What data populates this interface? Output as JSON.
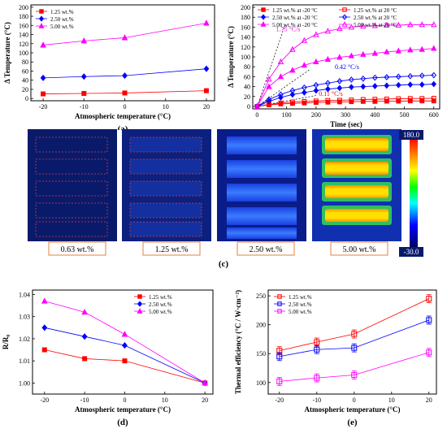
{
  "chart_data": [
    {
      "panel_label": "(a)",
      "type": "line",
      "xlabel": "Atmospheric temperature (°C)",
      "ylabel": "Δ Temperature (°C)",
      "x": [
        -20,
        -10,
        0,
        20
      ],
      "xlim": [
        -23,
        22
      ],
      "ylim": [
        -5,
        205
      ],
      "xticks": [
        -20,
        -10,
        0,
        10,
        20
      ],
      "yticks": [
        0,
        20,
        40,
        60,
        80,
        100,
        120,
        140,
        160,
        180,
        200
      ],
      "legend_position": "top-left",
      "series": [
        {
          "name": "1.25 wt.%",
          "color": "#ff0000",
          "marker": "square",
          "values": [
            10,
            11,
            12,
            17
          ]
        },
        {
          "name": "2.50 wt.%",
          "color": "#0000ff",
          "marker": "diamond",
          "values": [
            45,
            48,
            50,
            65
          ]
        },
        {
          "name": "5.00 wt.%",
          "color": "#ff00ff",
          "marker": "triangle",
          "values": [
            117,
            126,
            133,
            165
          ]
        }
      ]
    },
    {
      "panel_label": "(b)",
      "type": "line",
      "xlabel": "Time (sec)",
      "ylabel": "Δ Temperature (°C)",
      "xlim": [
        -15,
        620
      ],
      "ylim": [
        -5,
        205
      ],
      "xticks": [
        0,
        100,
        200,
        300,
        400,
        500,
        600
      ],
      "yticks": [
        0,
        20,
        40,
        60,
        80,
        100,
        120,
        140,
        160,
        180,
        200
      ],
      "legend_position": "top",
      "annotations": [
        {
          "text": "1.75 °C/s",
          "x": 105,
          "y": 152,
          "color": "#ff00ff"
        },
        {
          "text": "0.42 °C/s",
          "x": 305,
          "y": 75,
          "color": "#0000ff"
        },
        {
          "text": "0.11 °C/s",
          "x": 250,
          "y": 21,
          "color": "#ff0000"
        }
      ],
      "slope_lines": [
        {
          "x0": 0,
          "y0": 0,
          "x1": 95,
          "y1": 165
        },
        {
          "x0": 0,
          "y0": 0,
          "x1": 180,
          "y1": 75
        },
        {
          "x0": 0,
          "y0": 0,
          "x1": 200,
          "y1": 22
        }
      ],
      "series": [
        {
          "name": "1.25 wt.% at -20 °C",
          "color": "#ff0000",
          "marker": "square",
          "filled": true,
          "x": [
            0,
            40,
            80,
            120,
            160,
            200,
            240,
            280,
            320,
            360,
            400,
            440,
            480,
            520,
            560,
            600
          ],
          "values": [
            0,
            3,
            5,
            6,
            7,
            8,
            8.5,
            9,
            9.5,
            10,
            10,
            10.5,
            10.5,
            11,
            11,
            11
          ]
        },
        {
          "name": "2.50 wt.% at -20 °C",
          "color": "#0000ff",
          "marker": "diamond",
          "filled": true,
          "x": [
            0,
            40,
            80,
            120,
            160,
            200,
            240,
            280,
            320,
            360,
            400,
            440,
            480,
            520,
            560,
            600
          ],
          "values": [
            0,
            10,
            18,
            24,
            28,
            32,
            35,
            37,
            39,
            40,
            41,
            42,
            43,
            44,
            44,
            45
          ]
        },
        {
          "name": "5.00 wt.% at -20 °C",
          "color": "#ff00ff",
          "marker": "triangle",
          "filled": true,
          "x": [
            0,
            40,
            80,
            120,
            160,
            200,
            240,
            280,
            320,
            360,
            400,
            440,
            480,
            520,
            560,
            600
          ],
          "values": [
            0,
            40,
            60,
            73,
            83,
            90,
            95,
            99,
            102,
            105,
            107,
            110,
            112,
            114,
            115,
            117
          ]
        },
        {
          "name": "1.25 wt.% at 20 °C",
          "color": "#ff0000",
          "marker": "square",
          "filled": false,
          "x": [
            0,
            40,
            80,
            120,
            160,
            200,
            240,
            280,
            320,
            360,
            400,
            440,
            480,
            520,
            560,
            600
          ],
          "values": [
            0,
            4,
            7,
            9,
            10,
            11,
            12,
            12.5,
            13,
            14,
            14.5,
            15,
            15.5,
            16,
            16,
            16.5
          ]
        },
        {
          "name": "2.50 wt.% at 20 °C",
          "color": "#0000ff",
          "marker": "diamond",
          "filled": false,
          "x": [
            0,
            40,
            80,
            120,
            160,
            200,
            240,
            280,
            320,
            360,
            400,
            440,
            480,
            520,
            560,
            600
          ],
          "values": [
            0,
            14,
            24,
            32,
            38,
            43,
            47,
            51,
            54,
            56,
            58,
            59,
            60,
            61,
            62,
            63
          ]
        },
        {
          "name": "5.00 wt.% at 20 °C",
          "color": "#ff00ff",
          "marker": "triangle",
          "filled": false,
          "x": [
            0,
            40,
            80,
            120,
            160,
            200,
            240,
            280,
            320,
            360,
            400,
            440,
            480,
            520,
            560,
            600
          ],
          "values": [
            0,
            55,
            90,
            115,
            133,
            145,
            152,
            157,
            160,
            162,
            163,
            164,
            164,
            165,
            165,
            165
          ]
        }
      ]
    },
    {
      "panel_label": "(d)",
      "type": "line",
      "xlabel": "Atmospheric temperature (°C)",
      "ylabel": "R/R₀",
      "x": [
        -20,
        -10,
        0,
        20
      ],
      "xlim": [
        -23,
        22
      ],
      "ylim": [
        0.995,
        1.042
      ],
      "xticks": [
        -20,
        -10,
        0,
        10,
        20
      ],
      "yticks": [
        1.0,
        1.01,
        1.02,
        1.03,
        1.04
      ],
      "ytick_labels": [
        "1.00",
        "1.01",
        "1.02",
        "1.03",
        "1.04"
      ],
      "legend_position": "top-right",
      "series": [
        {
          "name": "1.25 wt.%",
          "color": "#ff0000",
          "marker": "square",
          "values": [
            1.015,
            1.011,
            1.01,
            1.0
          ]
        },
        {
          "name": "2.50 wt.%",
          "color": "#0000ff",
          "marker": "diamond",
          "values": [
            1.025,
            1.021,
            1.017,
            1.0
          ]
        },
        {
          "name": "5.00 wt.%",
          "color": "#ff00ff",
          "marker": "triangle",
          "values": [
            1.037,
            1.032,
            1.022,
            1.0
          ]
        }
      ]
    },
    {
      "panel_label": "(e)",
      "type": "line",
      "xlabel": "Atmospheric temperature (°C)",
      "ylabel": "Thermal efficiency (°C / W·cm⁻²)",
      "x": [
        -20,
        -10,
        0,
        20
      ],
      "xlim": [
        -23,
        22
      ],
      "ylim": [
        80,
        260
      ],
      "xticks": [
        -20,
        -10,
        0,
        10,
        20
      ],
      "yticks": [
        100,
        150,
        200,
        250
      ],
      "legend_position": "top-left",
      "series": [
        {
          "name": "1.25 wt.%",
          "color": "#ff0000",
          "marker": "square-open",
          "values": [
            155,
            170,
            184,
            245
          ],
          "errors": [
            7,
            7,
            7,
            7
          ]
        },
        {
          "name": "2.50 wt.%",
          "color": "#0000ff",
          "marker": "square-open",
          "values": [
            145,
            157,
            160,
            208
          ],
          "errors": [
            7,
            7,
            7,
            7
          ]
        },
        {
          "name": "5.00 wt.%",
          "color": "#ff00ff",
          "marker": "square-open",
          "values": [
            102,
            108,
            113,
            152
          ],
          "errors": [
            7,
            7,
            7,
            7
          ]
        }
      ]
    }
  ],
  "thermal_images": {
    "panel_label": "(c)",
    "labels": [
      "0.63 wt.%",
      "1.25 wt.%",
      "2.50 wt.%",
      "5.00 wt.%"
    ],
    "colorbar_max": "180.0",
    "colorbar_min": "-30.0"
  }
}
